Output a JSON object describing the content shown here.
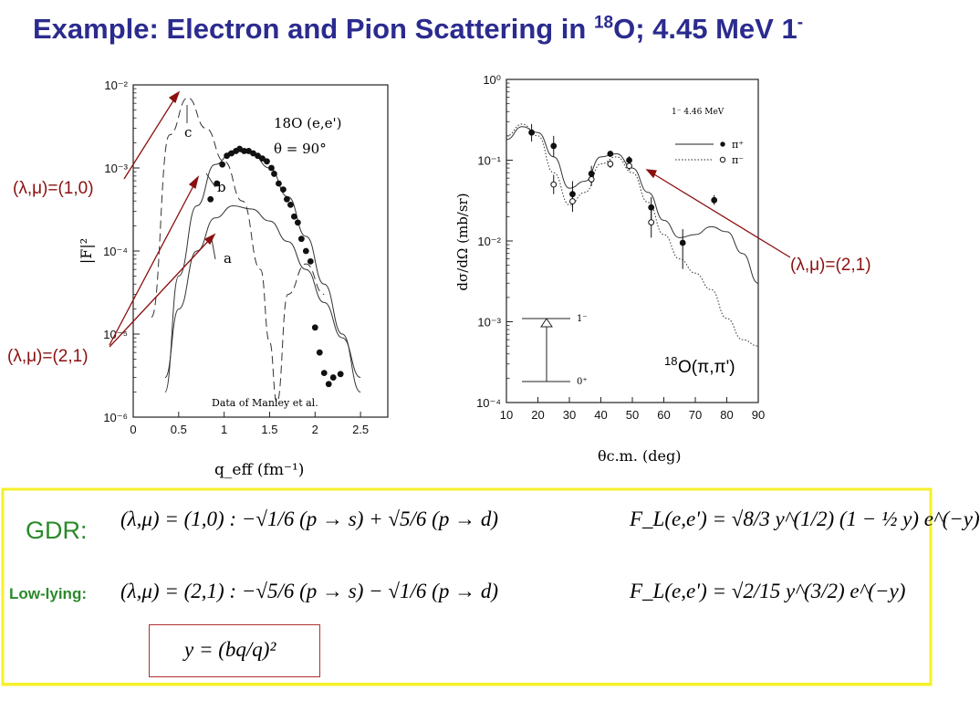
{
  "title": {
    "main": "Example: Electron and Pion Scattering in ",
    "mass_number": "18",
    "rest": "O; 4.45 MeV 1",
    "sign": "-"
  },
  "annotations": {
    "left_10": "(λ,μ)=(1,0)",
    "left_21": "(λ,μ)=(2,1)",
    "right_21": "(λ,μ)=(2,1)",
    "reaction_mass": "18",
    "reaction_text": "O(π,π')"
  },
  "colors": {
    "title": "#2b2b8f",
    "annotation": "#8b1010",
    "green": "#2a8a2a",
    "box_border": "#f5f02a"
  },
  "chart_data": [
    {
      "type": "scatter",
      "title": "18O (e,e')",
      "subtitle": "θ = 90°",
      "xlabel": "q_eff (fm⁻¹)",
      "ylabel": "|F|²",
      "log_y": true,
      "xlim": [
        0,
        2.8
      ],
      "ylim": [
        1e-06,
        0.01
      ],
      "x_ticks": [
        0,
        0.5,
        1,
        1.5,
        2,
        2.5
      ],
      "x_tick_labels": [
        "0",
        "0.5",
        "1",
        "1.5",
        "2",
        "2.5"
      ],
      "y_ticks": [
        1e-06,
        1e-05,
        0.0001,
        0.001,
        0.01
      ],
      "y_tick_labels": [
        "10⁻⁶",
        "10⁻⁵",
        "10⁻⁴",
        "10⁻³",
        "10⁻²"
      ],
      "curve_labels": [
        "a",
        "b",
        "c"
      ],
      "credit": "Data of Manley et al.",
      "series": [
        {
          "name": "data",
          "style": "markers",
          "x": [
            0.85,
            0.92,
            0.98,
            1.03,
            1.08,
            1.13,
            1.17,
            1.22,
            1.27,
            1.32,
            1.37,
            1.42,
            1.47,
            1.52,
            1.55,
            1.6,
            1.65,
            1.69,
            1.73,
            1.77,
            1.81,
            1.85,
            1.9,
            1.95,
            2.0,
            2.05,
            2.1,
            2.15,
            2.2,
            2.28
          ],
          "y": [
            0.00042,
            0.00065,
            0.0011,
            0.0014,
            0.0015,
            0.0016,
            0.0017,
            0.0016,
            0.0016,
            0.0015,
            0.0014,
            0.0013,
            0.0012,
            0.001,
            0.00085,
            0.00065,
            0.00055,
            0.00042,
            0.00036,
            0.00026,
            0.00022,
            0.00014,
            0.0001,
            7.5e-05,
            1.2e-05,
            6e-06,
            3.4e-06,
            2.5e-06,
            3e-06,
            3.3e-06
          ]
        },
        {
          "name": "a",
          "style": "solid",
          "x": [
            0.35,
            0.5,
            0.7,
            0.9,
            1.1,
            1.3,
            1.5,
            1.7,
            1.9,
            2.1,
            2.3,
            2.5
          ],
          "y": [
            3e-06,
            2e-05,
            0.0001,
            0.00025,
            0.00035,
            0.00032,
            0.00023,
            0.00013,
            6e-05,
            2.4e-05,
            9e-06,
            3e-06
          ]
        },
        {
          "name": "b",
          "style": "solid",
          "x": [
            0.35,
            0.5,
            0.7,
            0.9,
            1.1,
            1.3,
            1.5,
            1.7,
            1.9,
            2.1,
            2.3,
            2.5
          ],
          "y": [
            2e-06,
            5e-05,
            0.00035,
            0.0011,
            0.0016,
            0.0015,
            0.001,
            0.00045,
            0.00015,
            4e-05,
            1e-05,
            2e-06
          ]
        },
        {
          "name": "c",
          "style": "dashed",
          "x": [
            0.2,
            0.4,
            0.6,
            0.8,
            1.0,
            1.2,
            1.4,
            1.5,
            1.58,
            1.7,
            1.9,
            2.1
          ],
          "y": [
            1.6e-05,
            0.0025,
            0.007,
            0.003,
            0.0012,
            0.0004,
            6e-05,
            8e-06,
            1.5e-06,
            3e-05,
            7e-05,
            3e-05
          ]
        }
      ]
    },
    {
      "type": "scatter",
      "legend_title": "1⁻   4.46 MeV",
      "xlabel": "θc.m. (deg)",
      "ylabel": "dσ/dΩ (mb/sr)",
      "log_y": true,
      "xlim": [
        10,
        90
      ],
      "ylim": [
        0.0001,
        1
      ],
      "x_ticks": [
        10,
        20,
        30,
        40,
        50,
        60,
        70,
        80,
        90
      ],
      "x_tick_labels": [
        "10",
        "20",
        "30",
        "40",
        "50",
        "60",
        "70",
        "80",
        "90"
      ],
      "y_ticks": [
        0.0001,
        0.001,
        0.01,
        0.1,
        1
      ],
      "y_tick_labels": [
        "10⁻⁴",
        "10⁻³",
        "10⁻²",
        "10⁻¹",
        "10⁰"
      ],
      "legend": {
        "position": "top-right",
        "entries": [
          "π⁺",
          "π⁻"
        ]
      },
      "level_diagram": {
        "upper": "1⁻",
        "lower": "0⁺"
      },
      "series": [
        {
          "name": "π⁺",
          "style": "solid-filled",
          "x": [
            18,
            25,
            31,
            37,
            43,
            49,
            56,
            66,
            76
          ],
          "y": [
            0.22,
            0.15,
            0.038,
            0.068,
            0.12,
            0.1,
            0.026,
            0.0095,
            0.032
          ],
          "err_lo": [
            0.17,
            0.11,
            0.026,
            0.055,
            0.11,
            0.088,
            0.018,
            0.0045,
            0.028
          ],
          "err_hi": [
            0.28,
            0.2,
            0.055,
            0.085,
            0.13,
            0.112,
            0.035,
            0.014,
            0.037
          ]
        },
        {
          "name": "π⁻",
          "style": "dotted-open",
          "x": [
            25,
            31,
            37,
            43,
            49,
            56
          ],
          "y": [
            0.05,
            0.031,
            0.058,
            0.09,
            0.085,
            0.017
          ],
          "err_lo": [
            0.038,
            0.023,
            0.048,
            0.08,
            0.075,
            0.011
          ],
          "err_hi": [
            0.066,
            0.042,
            0.07,
            0.1,
            0.097,
            0.024
          ]
        },
        {
          "name": "π⁺ calc",
          "style": "solid",
          "x": [
            10,
            15,
            20,
            25,
            30,
            35,
            40,
            45,
            50,
            55,
            60,
            65,
            70,
            75,
            80,
            85,
            90
          ],
          "y": [
            0.18,
            0.26,
            0.22,
            0.11,
            0.045,
            0.055,
            0.11,
            0.12,
            0.08,
            0.04,
            0.018,
            0.011,
            0.012,
            0.015,
            0.013,
            0.007,
            0.003
          ]
        },
        {
          "name": "π⁻ calc",
          "style": "dotted",
          "x": [
            10,
            15,
            20,
            25,
            30,
            35,
            40,
            45,
            50,
            55,
            60,
            65,
            70,
            75,
            80,
            85,
            90
          ],
          "y": [
            0.2,
            0.28,
            0.2,
            0.07,
            0.028,
            0.04,
            0.09,
            0.11,
            0.07,
            0.03,
            0.012,
            0.006,
            0.004,
            0.0025,
            0.0011,
            0.0006,
            0.0005
          ]
        }
      ]
    }
  ],
  "equations": {
    "gdr_label": "GDR:",
    "lowlying_label": "Low-lying:",
    "gdr_coupling": "(λ,μ) = (1,0) :  −√1/6  (p → s) + √5/6 (p → d)",
    "gdr_formfactor": "F_L(e,e') = √8/3  y^(1/2) (1 − ½ y) e^(−y)",
    "low_coupling": "(λ,μ) = (2,1) :  −√5/6  (p → s) − √1/6 (p → d)",
    "low_formfactor": "F_L(e,e') = √2/15  y^(3/2) e^(−y)",
    "y_def": "y = (bq/q)²"
  }
}
